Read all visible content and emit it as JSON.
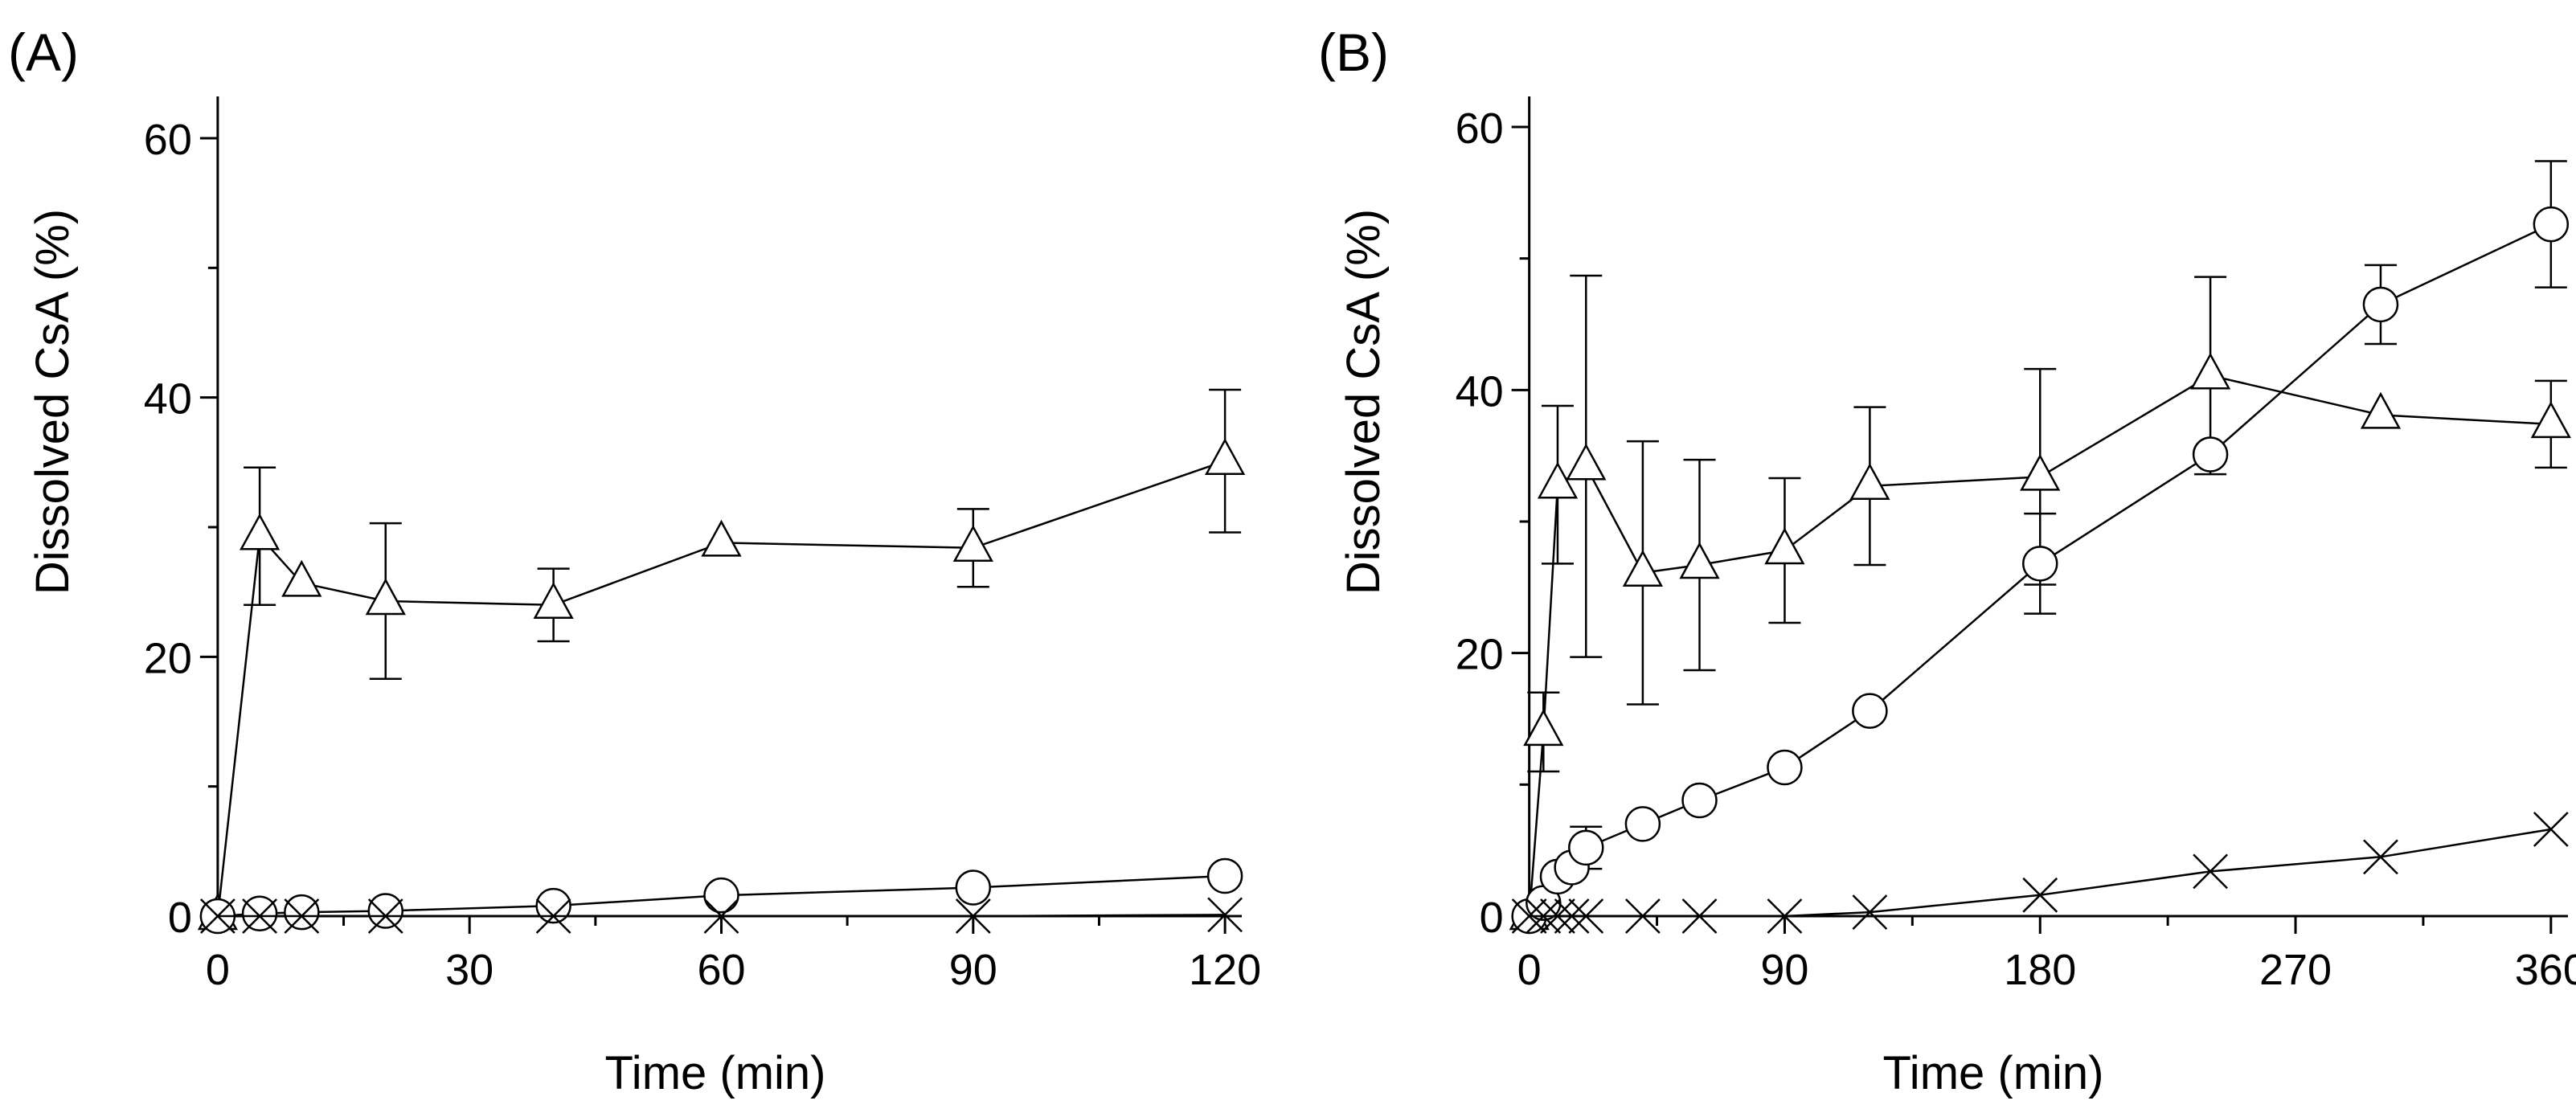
{
  "figure": {
    "panels": [
      "A",
      "B"
    ]
  },
  "chart_data": [
    {
      "type": "line",
      "panel_label": "(A)",
      "title": "",
      "xlabel": "Time (min)",
      "ylabel": "Dissolved CsA (%)",
      "xlim": [
        -2,
        122
      ],
      "ylim": [
        0,
        60
      ],
      "xticks": [
        0,
        30,
        60,
        90,
        120
      ],
      "xticks_minor": [
        15,
        45,
        75,
        105
      ],
      "yticks": [
        0,
        20,
        40,
        60
      ],
      "yticks_minor": [
        10,
        30,
        50
      ],
      "grid": false,
      "legend": "none",
      "series": [
        {
          "name": "triangle",
          "marker": "triangle",
          "x": [
            0,
            5,
            10,
            20,
            40,
            60,
            90,
            120
          ],
          "y": [
            0,
            29.3,
            25.7,
            24.3,
            24.0,
            28.8,
            28.4,
            35.1
          ],
          "err": [
            0,
            5.3,
            0,
            6.0,
            2.8,
            0,
            3.0,
            5.5
          ]
        },
        {
          "name": "circle",
          "marker": "circle",
          "x": [
            0,
            5,
            10,
            20,
            40,
            60,
            90,
            120
          ],
          "y": [
            0,
            0.2,
            0.3,
            0.4,
            0.8,
            1.6,
            2.2,
            3.1
          ],
          "err": [
            0,
            0,
            0,
            0,
            0,
            0,
            0,
            0
          ]
        },
        {
          "name": "cross",
          "marker": "cross",
          "x": [
            0,
            5,
            10,
            20,
            40,
            60,
            90,
            120
          ],
          "y": [
            0,
            0,
            0,
            0,
            0,
            0,
            0,
            0.1
          ],
          "err": [
            0,
            0,
            0,
            0,
            0,
            0,
            0,
            0
          ]
        }
      ]
    },
    {
      "type": "line",
      "panel_label": "(B)",
      "title": "",
      "xlabel": "Time (min)",
      "ylabel": "Dissolved CsA (%)",
      "xlim": [
        -5,
        366
      ],
      "ylim": [
        0,
        60
      ],
      "xticks": [
        0,
        90,
        180,
        270,
        360
      ],
      "xticks_minor": [
        45,
        135,
        225,
        315
      ],
      "yticks": [
        0,
        20,
        40,
        60
      ],
      "yticks_minor": [
        10,
        30,
        50
      ],
      "grid": false,
      "legend": "none",
      "series": [
        {
          "name": "triangle",
          "marker": "triangle",
          "x": [
            0,
            5,
            10,
            20,
            40,
            60,
            90,
            120,
            180,
            240,
            300,
            360
          ],
          "y": [
            0,
            14,
            32.8,
            34.2,
            26.1,
            26.7,
            27.8,
            32.7,
            33.4,
            41.1,
            38.1,
            37.4
          ],
          "err": [
            0,
            3.0,
            6.0,
            14.5,
            10.0,
            8.0,
            5.5,
            6.0,
            8.2,
            7.5,
            0,
            3.3
          ]
        },
        {
          "name": "circle",
          "marker": "circle",
          "x": [
            0,
            5,
            10,
            15,
            20,
            40,
            60,
            90,
            120,
            180,
            240,
            300,
            360
          ],
          "y": [
            0,
            1.0,
            3.0,
            3.7,
            5.2,
            7.0,
            8.8,
            11.3,
            15.6,
            26.8,
            35.1,
            46.5,
            52.6
          ],
          "err": [
            0,
            0,
            0,
            0,
            1.6,
            0,
            0,
            0,
            0,
            3.8,
            0,
            3.0,
            4.8
          ]
        },
        {
          "name": "cross",
          "marker": "cross",
          "x": [
            0,
            5,
            10,
            15,
            20,
            40,
            60,
            90,
            120,
            180,
            240,
            300,
            360
          ],
          "y": [
            0,
            0,
            0,
            0,
            0,
            0,
            0,
            0,
            0.3,
            1.6,
            3.4,
            4.5,
            6.6
          ],
          "err": [
            0,
            0,
            0,
            0,
            0,
            0,
            0,
            0,
            0,
            0,
            0,
            0,
            0
          ]
        }
      ]
    }
  ]
}
